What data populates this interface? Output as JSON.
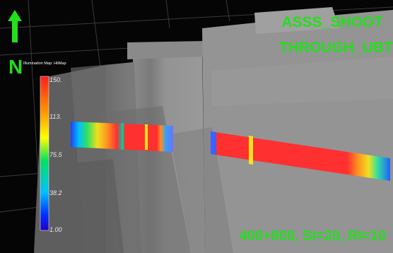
{
  "overlay": {
    "title_line1": "ASSS_SHOOT",
    "title_line2": "THROUGH_UBT",
    "params": "400+800, SI=20, RI=10",
    "north_label": "N",
    "text_color": "#22e01a"
  },
  "colorbar": {
    "title": "Illumination Map: HitMap",
    "ticks": [
      "150.",
      "113.",
      "75.5",
      "38.2",
      "1.00"
    ],
    "max": 150.0,
    "min": 1.0,
    "colors": [
      "#ff2020",
      "#ffa000",
      "#ffff00",
      "#00e060",
      "#00c0ff",
      "#0030ff",
      "#2000c0"
    ]
  },
  "icons": {
    "north_arrow": "up-arrow-icon"
  }
}
